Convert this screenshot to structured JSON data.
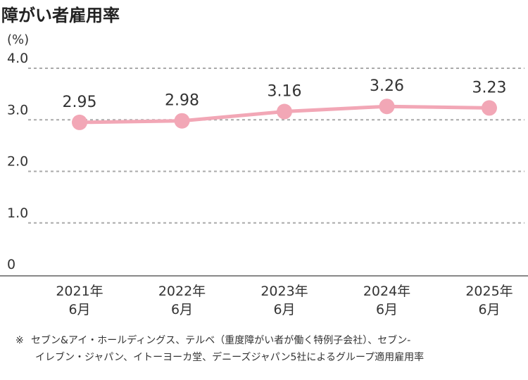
{
  "title": "障がい者雇用率",
  "chart_data": {
    "type": "line",
    "title": "障がい者雇用率",
    "ylabel": "",
    "unit": "(%)",
    "ylim": [
      0,
      4.0
    ],
    "yticks": [
      {
        "value": 0,
        "label": "0"
      },
      {
        "value": 1.0,
        "label": "1.0"
      },
      {
        "value": 2.0,
        "label": "2.0"
      },
      {
        "value": 3.0,
        "label": "3.0"
      },
      {
        "value": 4.0,
        "label": "4.0"
      }
    ],
    "categories": [
      {
        "year": "2021年",
        "month": "6月"
      },
      {
        "year": "2022年",
        "month": "6月"
      },
      {
        "year": "2023年",
        "month": "6月"
      },
      {
        "year": "2024年",
        "month": "6月"
      },
      {
        "year": "2025年",
        "month": "6月"
      }
    ],
    "values": [
      2.95,
      2.98,
      3.16,
      3.26,
      3.23
    ],
    "value_labels": [
      "2.95",
      "2.98",
      "3.16",
      "3.26",
      "3.23"
    ],
    "grid": true,
    "colors": {
      "line": "#f2a7b6",
      "grid": "#aaaaaa",
      "axis": "#888888",
      "text": "#333333"
    }
  },
  "note": {
    "mark": "※",
    "line1": "セブン&アイ・ホールディングス、テルベ（重度障がい者が働く特例子会社）、セブン-",
    "line2": "イレブン・ジャパン、イトーヨーカ堂、デニーズジャパン5社によるグループ適用雇用率"
  }
}
